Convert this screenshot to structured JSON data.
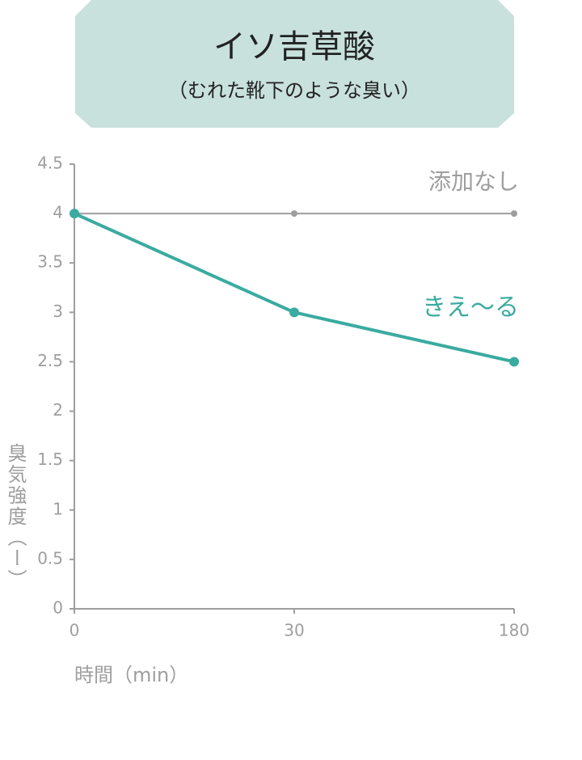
{
  "chart_data": {
    "type": "line",
    "title": "イソ吉草酸",
    "subtitle": "（むれた靴下のような臭い）",
    "x_label": "時間（min）",
    "y_label": "臭気強度（ー）",
    "categories": [
      "0",
      "30",
      "180"
    ],
    "series": [
      {
        "name": "添加なし",
        "color": "#9e9e9e",
        "values": [
          4,
          4,
          4
        ]
      },
      {
        "name": "きえ～る",
        "color": "#3aaba0",
        "values": [
          4,
          3,
          2.5
        ]
      }
    ],
    "ylim": [
      0,
      4.5
    ],
    "yticks": [
      0,
      0.5,
      1,
      1.5,
      2,
      2.5,
      3,
      3.5,
      4,
      4.5
    ],
    "grid": false
  }
}
